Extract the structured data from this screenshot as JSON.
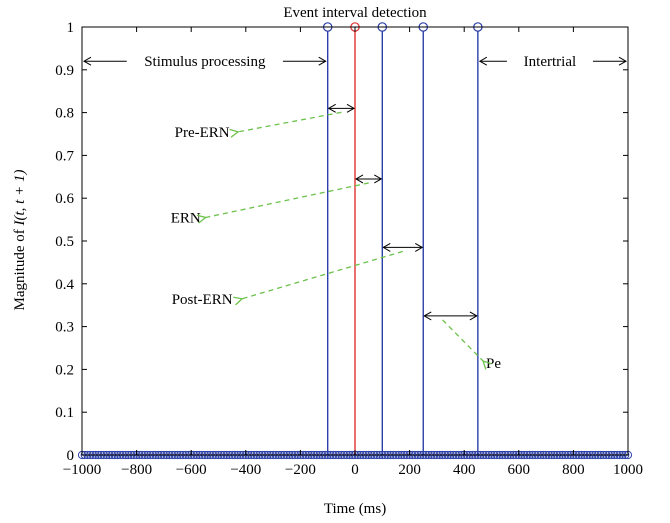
{
  "chart_data": {
    "type": "stem",
    "title": "Event interval detection",
    "xlabel": "Time (ms)",
    "ylabel_prefix": "Magnitude of ",
    "ylabel_math": "I(t, t + 1)",
    "xlim": [
      -1000,
      1000
    ],
    "ylim": [
      0,
      1
    ],
    "xticks": [
      -1000,
      -800,
      -600,
      -400,
      -200,
      0,
      200,
      400,
      600,
      800,
      1000
    ],
    "xtick_labels": [
      "−1000",
      "−800",
      "−600",
      "−400",
      "−200",
      "0",
      "200",
      "400",
      "600",
      "800",
      "1000"
    ],
    "yticks": [
      0,
      0.1,
      0.2,
      0.3,
      0.4,
      0.5,
      0.6,
      0.7,
      0.8,
      0.9,
      1
    ],
    "ytick_labels": [
      "0",
      "0.1",
      "0.2",
      "0.3",
      "0.4",
      "0.5",
      "0.6",
      "0.7",
      "0.8",
      "0.9",
      "1"
    ],
    "series": [
      {
        "color": "#2b3fa8",
        "x": [
          -100,
          100,
          250,
          450
        ],
        "values": [
          1,
          1,
          1,
          1
        ]
      },
      {
        "color": "#e03030",
        "x": [
          0
        ],
        "values": [
          1
        ]
      }
    ],
    "baseline_stems": {
      "color": "#2b3fa8",
      "from": -1000,
      "to": 1000,
      "step": 10,
      "value": 0
    },
    "region_annotations": [
      {
        "label": "Stimulus processing",
        "from": -1000,
        "to": -100,
        "y": 0.92
      },
      {
        "label": "Intertrial",
        "from": 450,
        "to": 1000,
        "y": 0.92
      }
    ],
    "intervals": [
      {
        "label": "Pre-ERN",
        "from": -100,
        "to": 0,
        "y": 0.81,
        "label_x": -560,
        "label_y": 0.755
      },
      {
        "label": "ERN",
        "from": 0,
        "to": 100,
        "y": 0.645,
        "label_x": -620,
        "label_y": 0.555
      },
      {
        "label": "Post-ERN",
        "from": 100,
        "to": 250,
        "y": 0.485,
        "label_x": -560,
        "label_y": 0.365
      },
      {
        "label": "Pe",
        "from": 250,
        "to": 450,
        "y": 0.325,
        "label_x": 480,
        "label_y": 0.215
      }
    ],
    "colors": {
      "axis": "#000000",
      "stem_blue": "#2b3fa8",
      "stem_red": "#e03030",
      "annotation_arrow": "#6cc24a"
    },
    "grid": false
  }
}
